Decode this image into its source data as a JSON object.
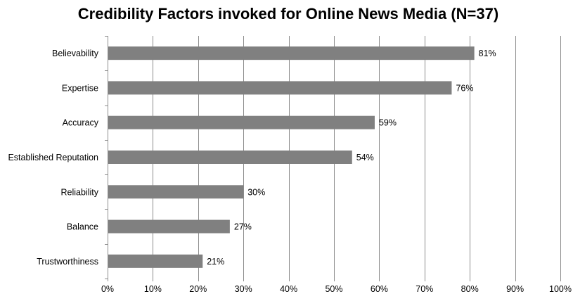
{
  "chart_data": {
    "type": "bar",
    "orientation": "horizontal",
    "title": "Credibility Factors invoked for Online News Media (N=37)",
    "categories": [
      "Believability",
      "Expertise",
      "Accuracy",
      "Established Reputation",
      "Reliability",
      "Balance",
      "Trustworthiness"
    ],
    "values": [
      81,
      76,
      59,
      54,
      30,
      27,
      21
    ],
    "value_labels": [
      "81%",
      "76%",
      "59%",
      "54%",
      "30%",
      "27%",
      "21%"
    ],
    "xlim": [
      0,
      100
    ],
    "x_ticks": [
      0,
      10,
      20,
      30,
      40,
      50,
      60,
      70,
      80,
      90,
      100
    ],
    "x_tick_labels": [
      "0%",
      "10%",
      "20%",
      "30%",
      "40%",
      "50%",
      "60%",
      "70%",
      "80%",
      "90%",
      "100%"
    ],
    "xlabel": "",
    "ylabel": "",
    "grid": "vertical",
    "legend": "none",
    "bar_color": "#808080",
    "grid_color": "#8c8c8c"
  }
}
